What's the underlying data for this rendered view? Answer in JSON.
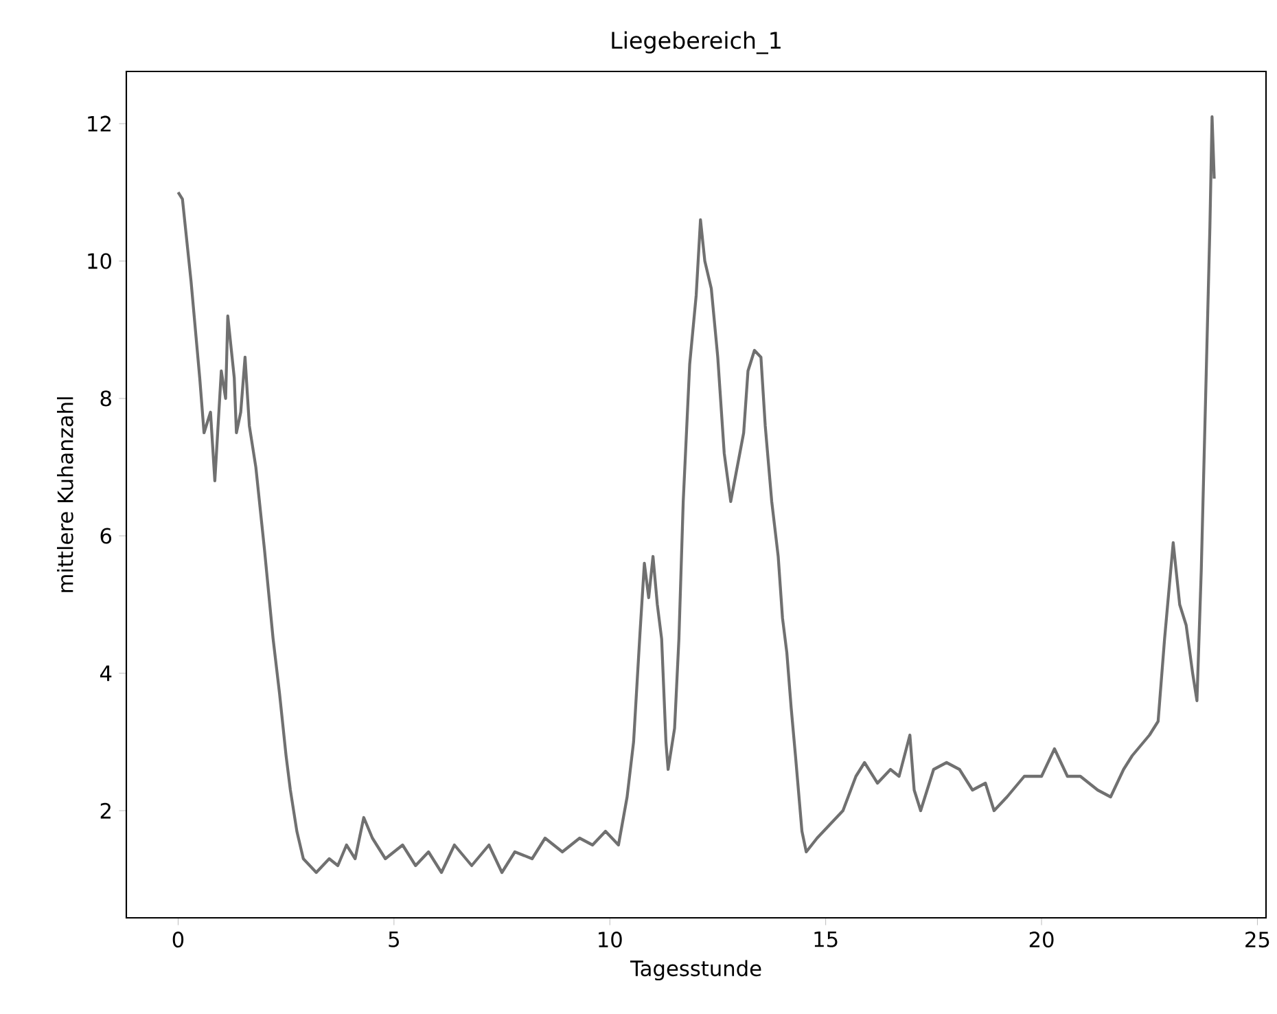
{
  "chart_data": {
    "type": "line",
    "title": "Liegebereich_1",
    "xlabel": "Tagesstunde",
    "ylabel": "mittlere Kuhanzahl",
    "xlim": [
      -1.2,
      25.2
    ],
    "ylim": [
      0.44,
      12.76
    ],
    "xticks": [
      0,
      5,
      10,
      15,
      20,
      25
    ],
    "yticks": [
      2,
      4,
      6,
      8,
      10,
      12
    ],
    "grid": false,
    "marker": "none",
    "line_style": "solid",
    "series": [
      {
        "color": "#707070",
        "x": [
          0,
          0.1,
          0.3,
          0.5,
          0.6,
          0.75,
          0.85,
          1.0,
          1.1,
          1.15,
          1.3,
          1.35,
          1.45,
          1.55,
          1.65,
          1.8,
          2.0,
          2.2,
          2.35,
          2.5,
          2.6,
          2.75,
          2.9,
          3.2,
          3.5,
          3.7,
          3.9,
          4.1,
          4.3,
          4.5,
          4.8,
          5.2,
          5.5,
          5.8,
          6.1,
          6.4,
          6.8,
          7.2,
          7.5,
          7.8,
          8.2,
          8.5,
          8.9,
          9.3,
          9.6,
          9.9,
          10.2,
          10.4,
          10.55,
          10.7,
          10.8,
          10.9,
          11.0,
          11.1,
          11.2,
          11.3,
          11.35,
          11.5,
          11.6,
          11.7,
          11.85,
          12.0,
          12.1,
          12.2,
          12.35,
          12.5,
          12.65,
          12.8,
          12.95,
          13.1,
          13.2,
          13.35,
          13.5,
          13.6,
          13.75,
          13.9,
          14.0,
          14.1,
          14.2,
          14.3,
          14.45,
          14.55,
          14.8,
          15.1,
          15.4,
          15.7,
          15.9,
          16.2,
          16.5,
          16.7,
          16.95,
          17.05,
          17.2,
          17.5,
          17.8,
          18.1,
          18.4,
          18.7,
          18.9,
          19.2,
          19.6,
          20.0,
          20.3,
          20.6,
          20.9,
          21.3,
          21.6,
          21.9,
          22.1,
          22.5,
          22.7,
          22.85,
          23.05,
          23.2,
          23.35,
          23.5,
          23.6,
          23.7,
          23.8,
          23.9,
          23.95,
          24.0
        ],
        "values": [
          11.0,
          10.9,
          9.7,
          8.3,
          7.5,
          7.8,
          6.8,
          8.4,
          8.0,
          9.2,
          8.3,
          7.5,
          7.8,
          8.6,
          7.6,
          7.0,
          5.8,
          4.5,
          3.7,
          2.8,
          2.3,
          1.7,
          1.3,
          1.1,
          1.3,
          1.2,
          1.5,
          1.3,
          1.9,
          1.6,
          1.3,
          1.5,
          1.2,
          1.4,
          1.1,
          1.5,
          1.2,
          1.5,
          1.1,
          1.4,
          1.3,
          1.6,
          1.4,
          1.6,
          1.5,
          1.7,
          1.5,
          2.2,
          3.0,
          4.6,
          5.6,
          5.1,
          5.7,
          5.0,
          4.5,
          3.0,
          2.6,
          3.2,
          4.5,
          6.5,
          8.5,
          9.5,
          10.6,
          10.0,
          9.6,
          8.6,
          7.2,
          6.5,
          7.0,
          7.5,
          8.4,
          8.7,
          8.6,
          7.6,
          6.5,
          5.7,
          4.8,
          4.3,
          3.5,
          2.8,
          1.7,
          1.4,
          1.6,
          1.8,
          2.0,
          2.5,
          2.7,
          2.4,
          2.6,
          2.5,
          3.1,
          2.3,
          2.0,
          2.6,
          2.7,
          2.6,
          2.3,
          2.4,
          2.0,
          2.2,
          2.5,
          2.5,
          2.9,
          2.5,
          2.5,
          2.3,
          2.2,
          2.6,
          2.8,
          3.1,
          3.3,
          4.5,
          5.9,
          5.0,
          4.7,
          4.0,
          3.6,
          5.5,
          8.0,
          10.5,
          12.1,
          11.2
        ]
      }
    ]
  }
}
